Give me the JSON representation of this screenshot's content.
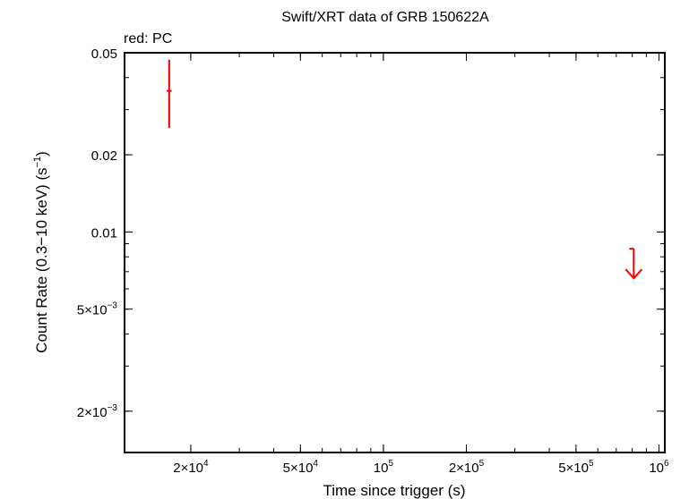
{
  "chart_data": {
    "type": "scatter",
    "title": "Swift/XRT data of GRB 150622A",
    "subtitle": "red: PC",
    "xlabel": "Time since trigger (s)",
    "ylabel_main": "Count Rate (0.3−10 keV) (s",
    "ylabel_sup": "−1",
    "ylabel_close": ")",
    "x_scale": "log",
    "y_scale": "log",
    "xlim": [
      11500,
      1050000
    ],
    "ylim": [
      0.00138,
      0.05
    ],
    "grid": false,
    "x_ticks": [
      {
        "value": 20000,
        "mant": "2×10",
        "exp": "4"
      },
      {
        "value": 50000,
        "mant": "5×10",
        "exp": "4"
      },
      {
        "value": 100000,
        "mant": "10",
        "exp": "5"
      },
      {
        "value": 200000,
        "mant": "2×10",
        "exp": "5"
      },
      {
        "value": 500000,
        "mant": "5×10",
        "exp": "5"
      },
      {
        "value": 1000000,
        "mant": "10",
        "exp": "6"
      }
    ],
    "y_ticks": [
      {
        "value": 0.05,
        "label": "0.05"
      },
      {
        "value": 0.02,
        "label": "0.02"
      },
      {
        "value": 0.01,
        "label": "0.01"
      },
      {
        "value": 0.005,
        "mant": "5×10",
        "exp": "−3"
      },
      {
        "value": 0.002,
        "mant": "2×10",
        "exp": "−3"
      }
    ],
    "series": [
      {
        "mode": "PC",
        "color": "#ee0000",
        "points": [
          {
            "x": 16700,
            "xerr_low": 16350,
            "xerr_high": 17050,
            "y": 0.0355,
            "yerr_low": 0.0255,
            "yerr_high": 0.047
          }
        ],
        "upper_limits": [
          {
            "x": 810000,
            "y": 0.0086,
            "y_arrow_tip": 0.0066
          }
        ]
      }
    ]
  }
}
